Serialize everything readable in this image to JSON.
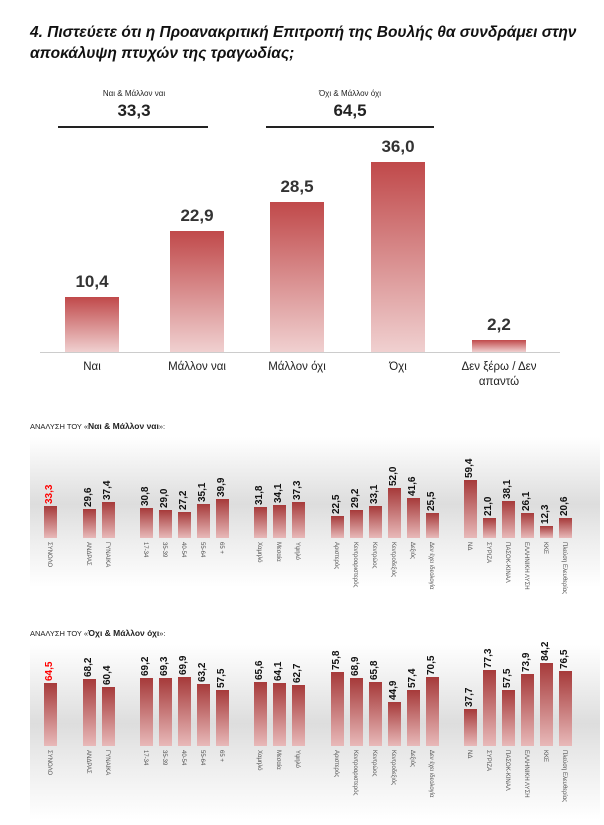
{
  "title": "4. Πιστεύετε ότι η Προανακριτική Επιτροπή της Βουλής θα συνδράμει στην αποκάλυψη πτυχών της τραγωδίας;",
  "summary": [
    {
      "label": "Ναι & Μάλλον ναι",
      "value": "33,3"
    },
    {
      "label": "Όχι & Μάλλον όχι",
      "value": "64,5"
    }
  ],
  "colors": {
    "bar_top": "#a63a3a",
    "bar_bottom": "#e8b9b9",
    "total_label": "#ff0000"
  },
  "chart_data": [
    {
      "type": "bar",
      "categories": [
        "Ναι",
        "Μάλλον ναι",
        "Μάλλον όχι",
        "Όχι",
        "Δεν ξέρω / Δεν απαντώ"
      ],
      "values": [
        10.4,
        22.9,
        28.5,
        36.0,
        2.2
      ],
      "labels": [
        "10,4",
        "22,9",
        "28,5",
        "36,0",
        "2,2"
      ]
    },
    {
      "type": "bar",
      "title_prefix": "ΑΝΑΛΥΣΗ ΤΟΥ «",
      "title_bold": "Ναι & Μάλλον ναι",
      "title_suffix": "»:",
      "categories": [
        "ΣΥΝΟΛΟ",
        "ΑΝΔΡΑΣ",
        "ΓΥΝΑΙΚΑ",
        "17-34",
        "35-39",
        "40-54",
        "55-64",
        "65 +",
        "Χαμηλό",
        "Μεσαία",
        "Υψηλό",
        "Αριστερός",
        "Κεντροαριστερός",
        "Κεντρώος",
        "Κεντροδεξιός",
        "Δεξιός",
        "Δεν έχει ιδεολογία",
        "ΝΔ",
        "ΣΥΡΙΖΑ",
        "ΠΑΣΟΚ-ΚΙΝΑΛ",
        "ΕΛΛΗΝΙΚΗ ΛΥΣΗ",
        "ΚΚΕ",
        "Πλεύση Ελευθερίας"
      ],
      "values": [
        33.3,
        29.6,
        37.4,
        30.8,
        29.0,
        27.2,
        35.1,
        39.9,
        31.8,
        34.1,
        37.3,
        22.5,
        29.2,
        33.1,
        52.0,
        41.6,
        25.5,
        59.4,
        21.0,
        38.1,
        26.1,
        12.3,
        20.6
      ],
      "labels": [
        "33,3",
        "29,6",
        "37,4",
        "30,8",
        "29,0",
        "27,2",
        "35,1",
        "39,9",
        "31,8",
        "34,1",
        "37,3",
        "22,5",
        "29,2",
        "33,1",
        "52,0",
        "41,6",
        "25,5",
        "59,4",
        "21,0",
        "38,1",
        "26,1",
        "12,3",
        "20,6"
      ]
    },
    {
      "type": "bar",
      "title_prefix": "ΑΝΑΛΥΣΗ ΤΟΥ «",
      "title_bold": "Όχι & Μάλλον όχι",
      "title_suffix": "»:",
      "categories": [
        "ΣΥΝΟΛΟ",
        "ΑΝΔΡΑΣ",
        "ΓΥΝΑΙΚΑ",
        "17-34",
        "35-39",
        "40-54",
        "55-64",
        "65 +",
        "Χαμηλό",
        "Μεσαία",
        "Υψηλό",
        "Αριστερός",
        "Κεντροαριστερός",
        "Κεντρώος",
        "Κεντροδεξιός",
        "Δεξιός",
        "Δεν έχει ιδεολογία",
        "ΝΔ",
        "ΣΥΡΙΖΑ",
        "ΠΑΣΟΚ-ΚΙΝΑΛ",
        "ΕΛΛΗΝΙΚΗ ΛΥΣΗ",
        "ΚΚΕ",
        "Πλεύση Ελευθερίας"
      ],
      "values": [
        64.5,
        68.2,
        60.4,
        69.2,
        69.3,
        69.9,
        63.2,
        57.5,
        65.6,
        64.1,
        62.7,
        75.8,
        68.9,
        65.8,
        44.9,
        57.4,
        70.5,
        37.7,
        77.3,
        57.5,
        73.9,
        84.2,
        76.5
      ],
      "labels": [
        "64,5",
        "68,2",
        "60,4",
        "69,2",
        "69,3",
        "69,9",
        "63,2",
        "57,5",
        "65,6",
        "64,1",
        "62,7",
        "75,8",
        "68,9",
        "65,8",
        "44,9",
        "57,4",
        "70,5",
        "37,7",
        "77,3",
        "57,5",
        "73,9",
        "84,2",
        "76,5"
      ]
    }
  ]
}
